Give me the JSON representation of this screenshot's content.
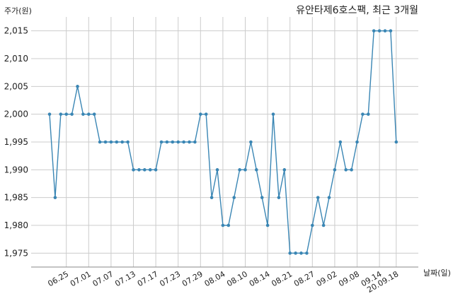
{
  "chart_data": {
    "type": "line",
    "title": "유안타제6호스팩, 최근 3개월",
    "ylabel": "주가(원)",
    "xlabel": "날짜(일)",
    "ylim": [
      1972.5,
      2017.5
    ],
    "yticks": [
      1975,
      1980,
      1985,
      1990,
      1995,
      2000,
      2005,
      2010,
      2015
    ],
    "ytick_labels": [
      "1,975",
      "1,980",
      "1,985",
      "1,990",
      "1,995",
      "2,000",
      "2,005",
      "2,010",
      "2,015"
    ],
    "xtick_labels": [
      {
        "index": 3,
        "label": "06.25"
      },
      {
        "index": 7,
        "label": "07.01"
      },
      {
        "index": 11,
        "label": "07.07"
      },
      {
        "index": 15,
        "label": "07.13"
      },
      {
        "index": 19,
        "label": "07.17"
      },
      {
        "index": 23,
        "label": "07.23"
      },
      {
        "index": 27,
        "label": "07.29"
      },
      {
        "index": 31,
        "label": "08.04"
      },
      {
        "index": 35,
        "label": "08.10"
      },
      {
        "index": 39,
        "label": "08.14"
      },
      {
        "index": 43,
        "label": "08.21"
      },
      {
        "index": 47,
        "label": "08.27"
      },
      {
        "index": 51,
        "label": "09.02"
      },
      {
        "index": 55,
        "label": "09.08"
      },
      {
        "index": 59,
        "label": "09.14"
      },
      {
        "index": 62,
        "label": "20.09.18"
      }
    ],
    "grid": true,
    "color": "#3a86b4",
    "values": [
      2000,
      1985,
      2000,
      2000,
      2000,
      2005,
      2000,
      2000,
      2000,
      1995,
      1995,
      1995,
      1995,
      1995,
      1995,
      1990,
      1990,
      1990,
      1990,
      1990,
      1995,
      1995,
      1995,
      1995,
      1995,
      1995,
      1995,
      2000,
      2000,
      1985,
      1990,
      1980,
      1980,
      1985,
      1990,
      1990,
      1995,
      1990,
      1985,
      1980,
      2000,
      1985,
      1990,
      1975,
      1975,
      1975,
      1975,
      1980,
      1985,
      1980,
      1985,
      1990,
      1995,
      1990,
      1990,
      1995,
      2000,
      2000,
      2015,
      2015,
      2015,
      2015,
      1995
    ]
  }
}
